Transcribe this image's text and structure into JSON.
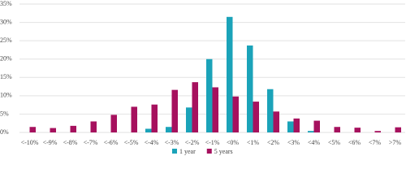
{
  "chart_data": {
    "type": "bar",
    "categories": [
      "<-10%",
      "<-9%",
      "<-8%",
      "<-7%",
      "<-6%",
      "<-5%",
      "<-4%",
      "<-3%",
      "<-2%",
      "<-1%",
      "<0%",
      "<1%",
      "<2%",
      "<3%",
      "<4%",
      "<5%",
      "<6%",
      "<7%",
      ">7%"
    ],
    "series": [
      {
        "name": "1 year",
        "color": "#1ba3b9",
        "values": [
          0,
          0,
          0,
          0,
          0,
          0,
          1,
          1.5,
          6.8,
          20,
          31.5,
          23.7,
          11.8,
          3,
          0.4,
          0,
          0,
          0,
          0
        ]
      },
      {
        "name": "5 years",
        "color": "#a6115e",
        "values": [
          1.5,
          1.2,
          1.8,
          3,
          4.8,
          7,
          7.6,
          11.6,
          13.7,
          12.3,
          9.8,
          8.4,
          5.7,
          3.8,
          3.2,
          1.5,
          1.3,
          0.4,
          1.4
        ]
      }
    ],
    "ylim": [
      0,
      35
    ],
    "yticks": [
      {
        "value": 0,
        "label": "0%"
      },
      {
        "value": 5,
        "label": "5%"
      },
      {
        "value": 10,
        "label": "10%"
      },
      {
        "value": 15,
        "label": "15%"
      },
      {
        "value": 20,
        "label": "20%"
      },
      {
        "value": 25,
        "label": "25%"
      },
      {
        "value": 30,
        "label": "30%"
      },
      {
        "value": 35,
        "label": "35%"
      }
    ],
    "grid": true,
    "legend": "bottom"
  }
}
